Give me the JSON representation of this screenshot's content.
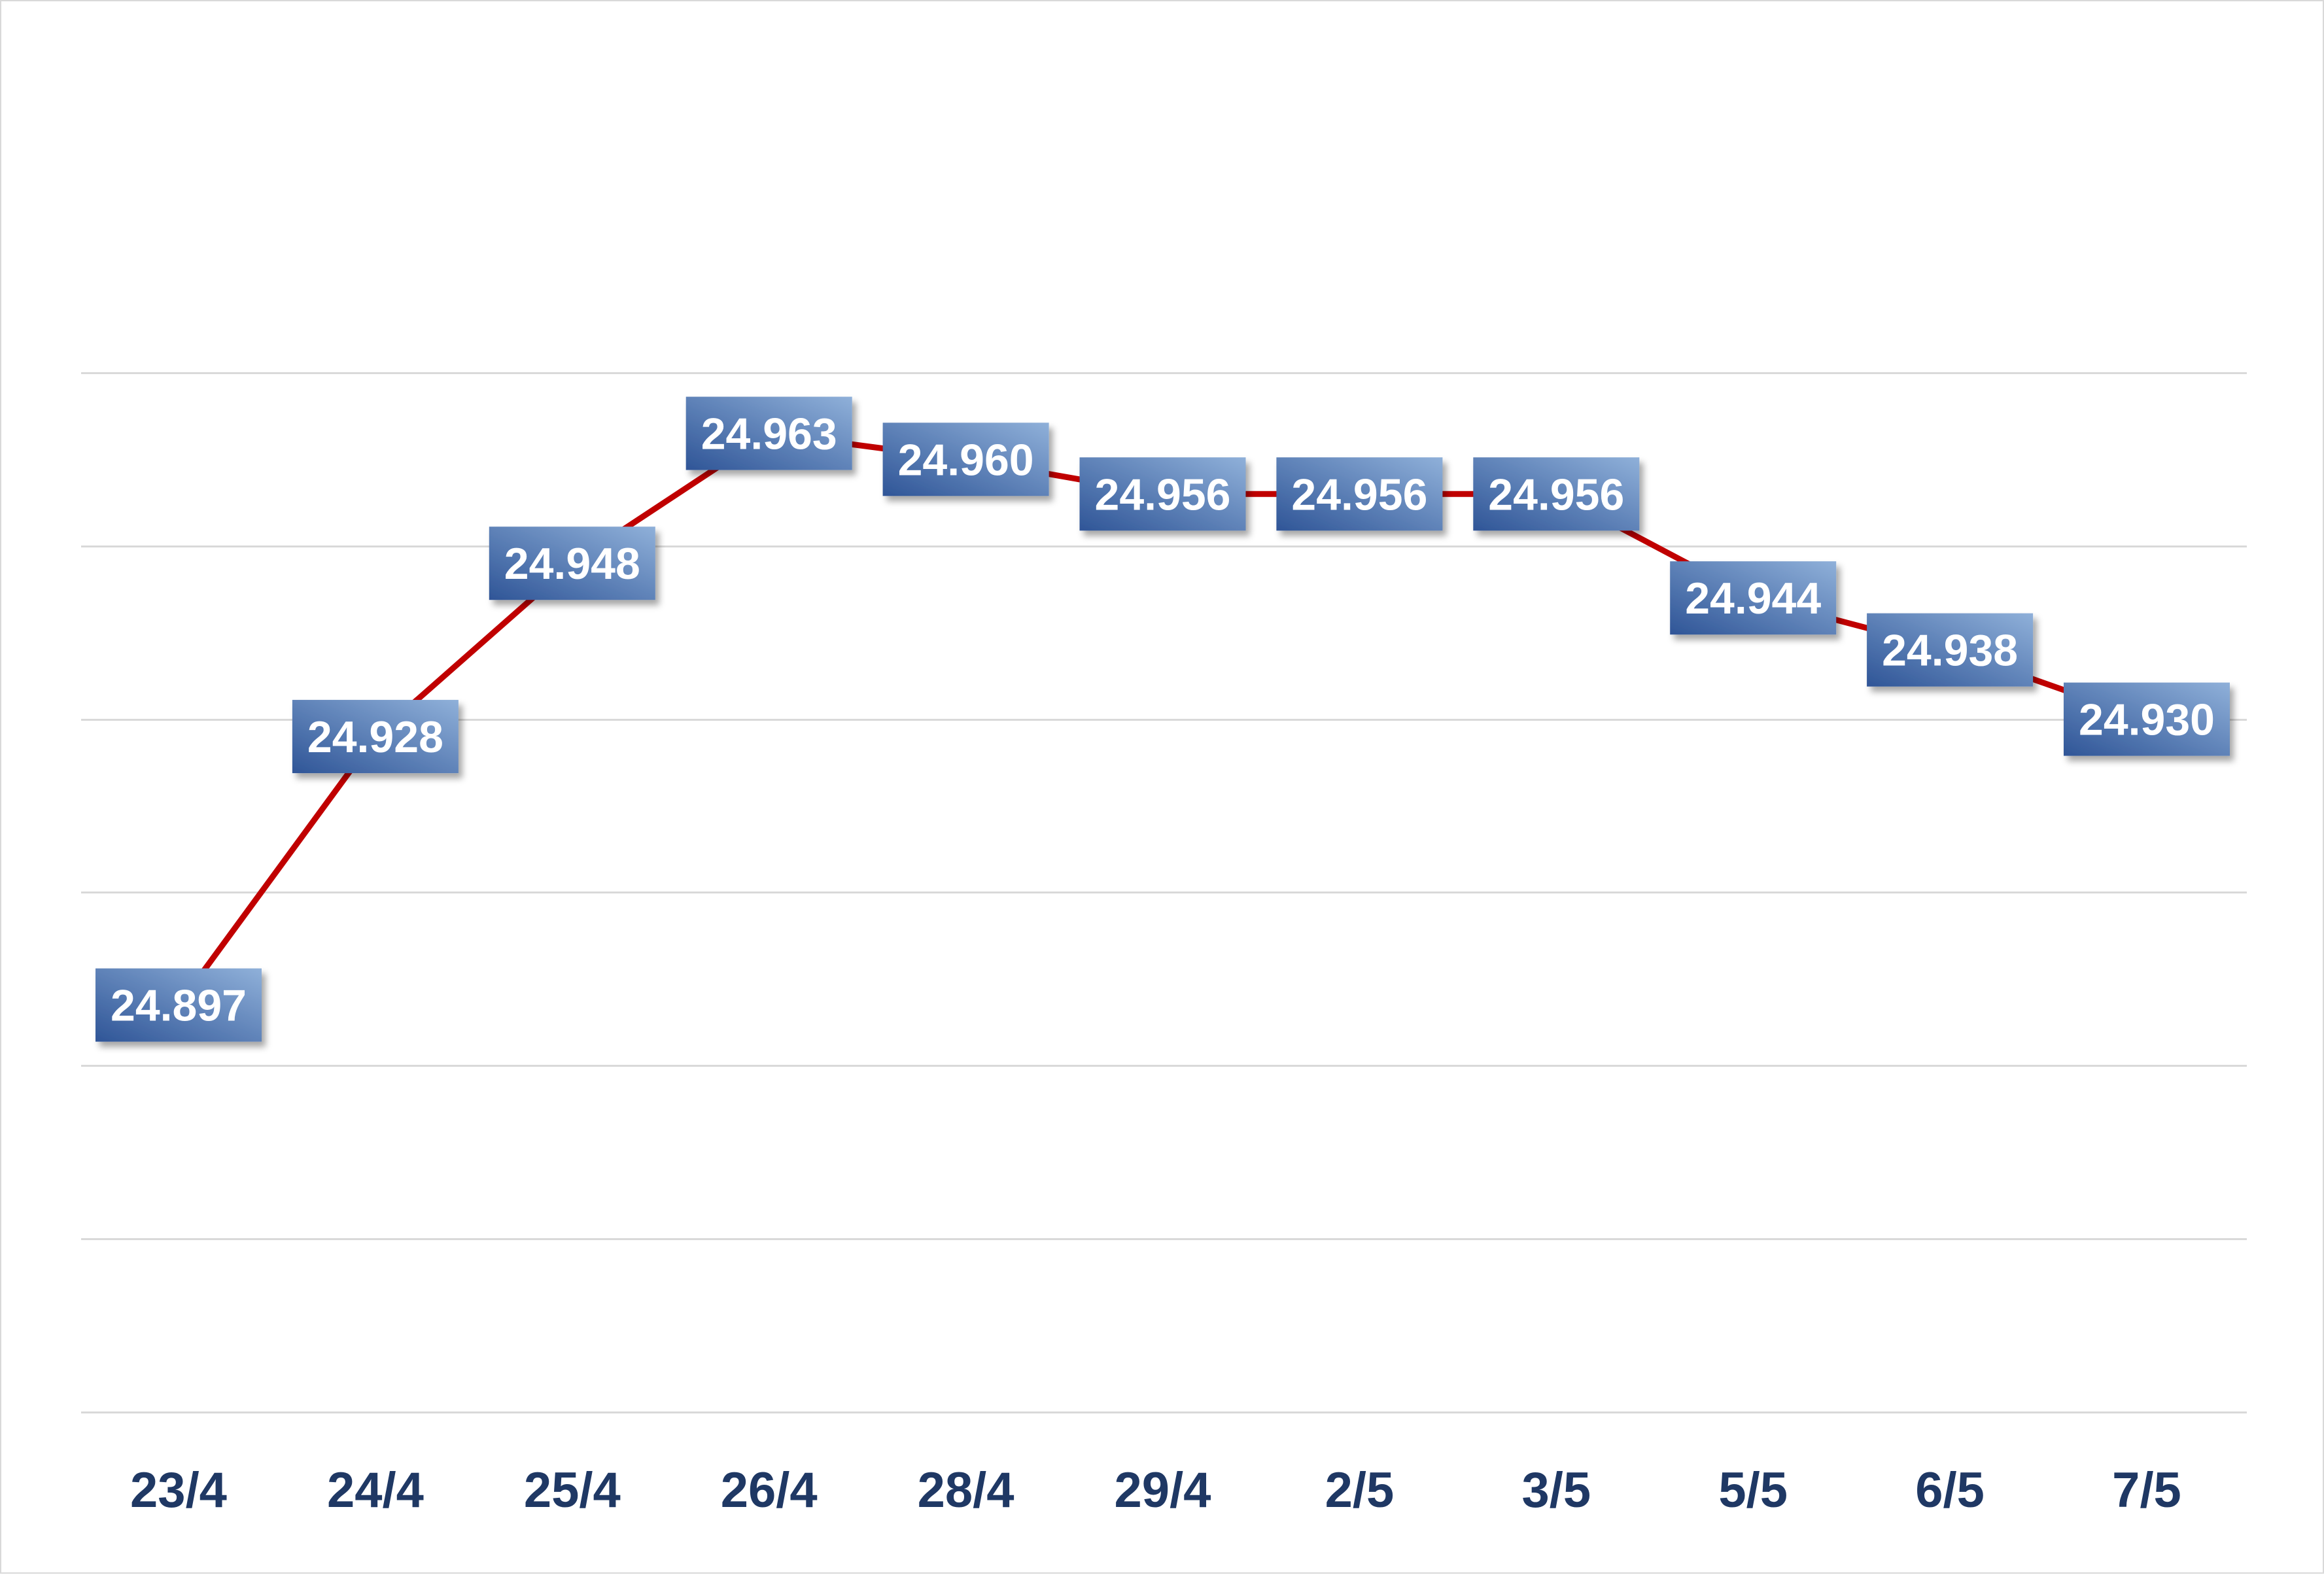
{
  "colors": {
    "line": "#c00000",
    "gridline": "#d9d9d9",
    "tick_text": "#1f3864",
    "label_box_dark": "#2f5597",
    "label_box_light": "#8fb0d9",
    "label_text": "#ffffff"
  },
  "chart_data": {
    "type": "line",
    "title": "",
    "xlabel": "",
    "ylabel": "",
    "categories": [
      "23/4",
      "24/4",
      "25/4",
      "26/4",
      "28/4",
      "29/4",
      "2/5",
      "3/5",
      "5/5",
      "6/5",
      "7/5"
    ],
    "series": [
      {
        "values": [
          24897,
          24928,
          24948,
          24963,
          24960,
          24956,
          24956,
          24956,
          24944,
          24938,
          24930
        ],
        "labels": [
          "24.897",
          "24.928",
          "24.948",
          "24.963",
          "24.960",
          "24.956",
          "24.956",
          "24.956",
          "24.944",
          "24.938",
          "24.930"
        ]
      }
    ],
    "ylim": [
      24850,
      24990
    ],
    "ygrid_values": [
      24850,
      24870,
      24890,
      24910,
      24930,
      24950,
      24970
    ],
    "grid": true,
    "legend": "none",
    "y_tick_labels_shown": false
  }
}
